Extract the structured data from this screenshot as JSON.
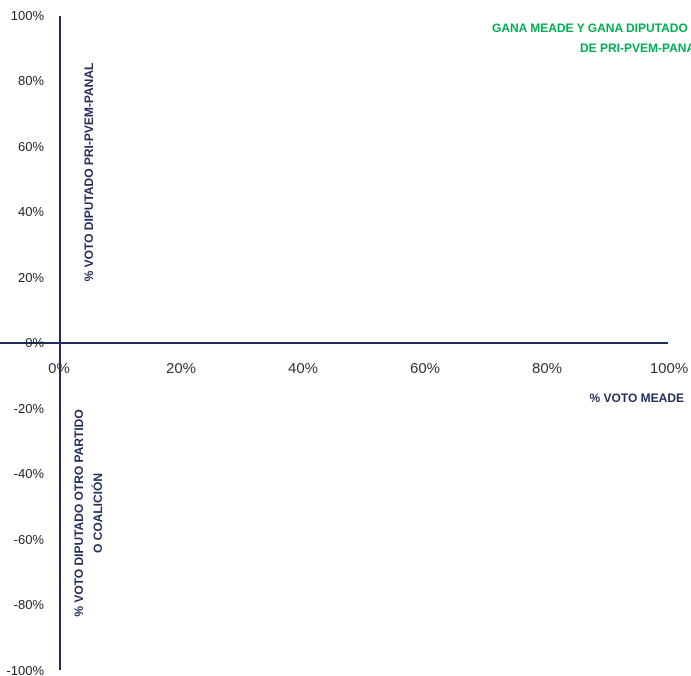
{
  "chart_data": {
    "type": "scatter",
    "title": "",
    "xlabel": "% VOTO MEADE",
    "ylabel_positive": "% VOTO DIPUTADO PRI-PVEM-PANAL",
    "ylabel_negative_line1": "% VOTO DIPUTADO OTRO PARTIDO",
    "ylabel_negative_line2": "O COALICIÓN",
    "quadrant_label_line1": "GANA MEADE Y GANA DIPUTADO",
    "quadrant_label_line2": "DE PRI-PVEM-PANAL",
    "xlim": [
      0,
      1
    ],
    "ylim": [
      -1,
      1
    ],
    "x_ticks": [
      "0%",
      "20%",
      "40%",
      "60%",
      "80%",
      "100%"
    ],
    "y_ticks": [
      "100%",
      "80%",
      "60%",
      "40%",
      "20%",
      "0%",
      "-20%",
      "-40%",
      "-60%",
      "-80%",
      "-100%"
    ],
    "series": [],
    "grid": false,
    "colors": {
      "axis": "#1f2d5a",
      "quadrant_label": "#00b050",
      "tick_text": "#1f1f1f"
    }
  }
}
